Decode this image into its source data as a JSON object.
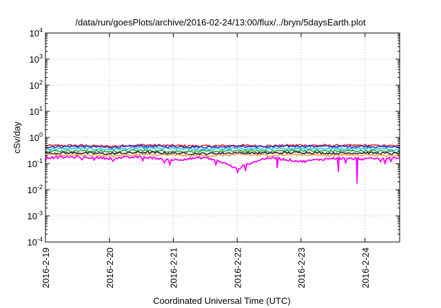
{
  "chart_data": {
    "type": "line",
    "title": "/data/run/goesPlots/archive/2016-02-24/13:00/flux/../bryn/5daysEarth.plot",
    "xlabel": "Coordinated Universal Time (UTC)",
    "ylabel": "cSv/day",
    "yscale": "log",
    "ylim": [
      0.0001,
      10000
    ],
    "y_ticks": [
      {
        "base": "10",
        "exp": "-4",
        "value": 0.0001
      },
      {
        "base": "10",
        "exp": "-3",
        "value": 0.001
      },
      {
        "base": "10",
        "exp": "-2",
        "value": 0.01
      },
      {
        "base": "10",
        "exp": "-1",
        "value": 0.1
      },
      {
        "base": "10",
        "exp": "0",
        "value": 1
      },
      {
        "base": "10",
        "exp": "1",
        "value": 10
      },
      {
        "base": "10",
        "exp": "2",
        "value": 100
      },
      {
        "base": "10",
        "exp": "3",
        "value": 1000
      },
      {
        "base": "10",
        "exp": "4",
        "value": 10000
      }
    ],
    "xlim": [
      "2016-02-19T00:00",
      "2016-02-24T13:00"
    ],
    "x_ticks": [
      {
        "label": "2016-2-19",
        "date": "2016-02-19T00:00"
      },
      {
        "label": "2016-2-20",
        "date": "2016-02-20T00:00"
      },
      {
        "label": "2016-2-21",
        "date": "2016-02-21T00:00"
      },
      {
        "label": "2016-2-22",
        "date": "2016-02-22T00:00"
      },
      {
        "label": "2016-2-23",
        "date": "2016-02-23T00:00"
      },
      {
        "label": "2016-2-24",
        "date": "2016-02-24T00:00"
      }
    ],
    "grid": true,
    "legend": "none",
    "series": [
      {
        "color": "#e8261e",
        "x": [
          "2016-02-19T00:00",
          "2016-02-19T12:00",
          "2016-02-20T00:00",
          "2016-02-20T12:00",
          "2016-02-21T00:00",
          "2016-02-21T12:00",
          "2016-02-22T00:00",
          "2016-02-22T12:00",
          "2016-02-23T00:00",
          "2016-02-23T12:00",
          "2016-02-24T00:00",
          "2016-02-24T13:00"
        ],
        "values": [
          0.48,
          0.5,
          0.46,
          0.52,
          0.49,
          0.47,
          0.5,
          0.48,
          0.51,
          0.49,
          0.5,
          0.47
        ]
      },
      {
        "color": "#1f2fd8",
        "x": [
          "2016-02-19T00:00",
          "2016-02-19T12:00",
          "2016-02-20T00:00",
          "2016-02-20T12:00",
          "2016-02-21T00:00",
          "2016-02-21T12:00",
          "2016-02-22T00:00",
          "2016-02-22T12:00",
          "2016-02-23T00:00",
          "2016-02-23T12:00",
          "2016-02-24T00:00",
          "2016-02-24T13:00"
        ],
        "values": [
          0.44,
          0.46,
          0.42,
          0.47,
          0.45,
          0.43,
          0.46,
          0.44,
          0.47,
          0.45,
          0.46,
          0.43
        ]
      },
      {
        "color": "#25c8dc",
        "x": [
          "2016-02-19T00:00",
          "2016-02-19T12:00",
          "2016-02-20T00:00",
          "2016-02-20T12:00",
          "2016-02-21T00:00",
          "2016-02-21T12:00",
          "2016-02-22T00:00",
          "2016-02-22T12:00",
          "2016-02-23T00:00",
          "2016-02-23T12:00",
          "2016-02-24T00:00",
          "2016-02-24T13:00"
        ],
        "values": [
          0.36,
          0.38,
          0.35,
          0.39,
          0.37,
          0.35,
          0.38,
          0.36,
          0.39,
          0.37,
          0.38,
          0.35
        ]
      },
      {
        "color": "#2ba84a",
        "x": [
          "2016-02-19T00:00",
          "2016-02-19T12:00",
          "2016-02-20T00:00",
          "2016-02-20T12:00",
          "2016-02-21T00:00",
          "2016-02-21T12:00",
          "2016-02-22T00:00",
          "2016-02-22T12:00",
          "2016-02-23T00:00",
          "2016-02-23T12:00",
          "2016-02-24T00:00",
          "2016-02-24T13:00"
        ],
        "values": [
          0.3,
          0.31,
          0.29,
          0.32,
          0.3,
          0.29,
          0.31,
          0.3,
          0.32,
          0.3,
          0.31,
          0.29
        ]
      },
      {
        "color": "#222222",
        "x": [
          "2016-02-19T00:00",
          "2016-02-19T12:00",
          "2016-02-20T00:00",
          "2016-02-20T12:00",
          "2016-02-21T00:00",
          "2016-02-21T12:00",
          "2016-02-22T00:00",
          "2016-02-22T12:00",
          "2016-02-23T00:00",
          "2016-02-23T12:00",
          "2016-02-24T00:00",
          "2016-02-24T13:00"
        ],
        "values": [
          0.25,
          0.26,
          0.24,
          0.27,
          0.25,
          0.24,
          0.26,
          0.25,
          0.27,
          0.25,
          0.26,
          0.24
        ]
      },
      {
        "color": "#f2a14a",
        "x": [
          "2016-02-19T00:00",
          "2016-02-19T12:00",
          "2016-02-20T00:00",
          "2016-02-20T12:00",
          "2016-02-21T00:00",
          "2016-02-21T12:00",
          "2016-02-22T00:00",
          "2016-02-22T12:00",
          "2016-02-23T00:00",
          "2016-02-23T12:00",
          "2016-02-24T00:00",
          "2016-02-24T13:00"
        ],
        "values": [
          0.21,
          0.22,
          0.2,
          0.22,
          0.21,
          0.2,
          0.22,
          0.21,
          0.22,
          0.21,
          0.22,
          0.2
        ]
      },
      {
        "color": "#ff00ff",
        "x": [
          "2016-02-19T00:00",
          "2016-02-19T12:00",
          "2016-02-20T00:00",
          "2016-02-20T12:00",
          "2016-02-21T00:00",
          "2016-02-21T12:00",
          "2016-02-22T00:00",
          "2016-02-22T12:00",
          "2016-02-23T00:00",
          "2016-02-23T12:00",
          "2016-02-24T00:00",
          "2016-02-24T13:00"
        ],
        "values": [
          0.17,
          0.18,
          0.16,
          0.18,
          0.14,
          0.17,
          0.06,
          0.17,
          0.12,
          0.16,
          0.15,
          0.17
        ],
        "dips": [
          {
            "x": "2016-02-23T21:00",
            "value": 0.018
          },
          {
            "x": "2016-02-23T14:00",
            "value": 0.05
          },
          {
            "x": "2016-02-22T15:00",
            "value": 0.07
          }
        ]
      }
    ]
  }
}
